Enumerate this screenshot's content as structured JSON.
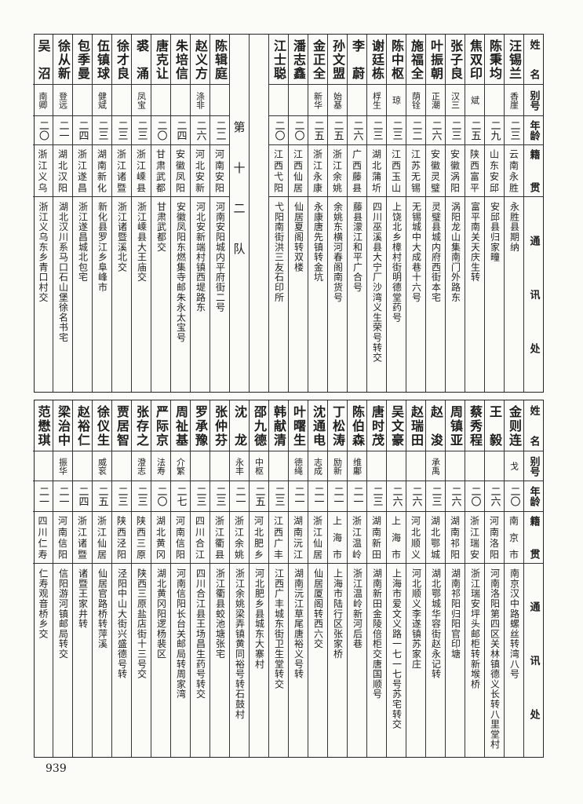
{
  "header_labels": {
    "name": "姓名",
    "alias": "别号",
    "age": "年龄",
    "origin": "籍贯",
    "address": "通讯处"
  },
  "separator_label": "第十二队",
  "top_right_group": [
    {
      "name": "汪锡兰",
      "alias": "香崖",
      "age": "二三",
      "origin": "云南永胜",
      "address": "永胜县期纳"
    },
    {
      "name": "陈秉均",
      "alias": "",
      "age": "二九",
      "origin": "山东安邱",
      "address": "安邱县归家疃"
    },
    {
      "name": "焦双印",
      "alias": "斌",
      "age": "二五",
      "origin": "陕西富平",
      "address": "富平南关天庆生转"
    },
    {
      "name": "张子良",
      "alias": "汉三",
      "age": "二三",
      "origin": "安徽涡阳",
      "address": "涡阳龙山集南门外路东"
    },
    {
      "name": "叶振朝",
      "alias": "正潮",
      "age": "二六",
      "origin": "安徽灵璧",
      "address": "灵璧县城内府西街本宅"
    },
    {
      "name": "施福全",
      "alias": "荫铨",
      "age": "二二",
      "origin": "江苏无锡",
      "address": "无锡城中大成巷十六号"
    },
    {
      "name": "陈中枢",
      "alias": "琼",
      "age": "二三",
      "origin": "江西玉山",
      "address": "上饶北乡樟村街明德堂药号"
    },
    {
      "name": "谢廷栋",
      "alias": "桴生",
      "age": "二三",
      "origin": "湖北蒲圻",
      "address": "四川巫溪县大宁厂沙湾义生荣号转交"
    },
    {
      "name": "李蔚",
      "alias": "",
      "age": "二六",
      "origin": "广西藤县",
      "address": "藤县濛江和平广合号"
    },
    {
      "name": "孙文盟",
      "alias": "始基",
      "age": "二五",
      "origin": "浙江余姚",
      "address": "余姚东横河春阁南货号"
    },
    {
      "name": "金正全",
      "alias": "新华",
      "age": "二五",
      "origin": "浙江永康",
      "address": "永康唐先镇转金坑"
    },
    {
      "name": "潘志鑫",
      "alias": "",
      "age": "二〇",
      "origin": "江西仙居",
      "address": "仙居夏阁转双楼"
    },
    {
      "name": "江士聪",
      "alias": "",
      "age": "二〇",
      "origin": "江西弋阳",
      "address": "弋阳南街洪三友石印所"
    }
  ],
  "top_left_group": [
    {
      "name": "陈辑庭",
      "alias": "",
      "age": "二二",
      "origin": "河南安阳",
      "address": "河南安阳城内平府街二号"
    },
    {
      "name": "赵义方",
      "alias": "涤非",
      "age": "二六",
      "origin": "河北安新",
      "address": "河北安新端村镇西堤路东"
    },
    {
      "name": "朱培信",
      "alias": "",
      "age": "二四",
      "origin": "安徽凤阳",
      "address": "安徽凤阳东燃集寺邮朱永太宝号"
    },
    {
      "name": "唐克让",
      "alias": "",
      "age": "二〇",
      "origin": "甘肃武都",
      "address": "甘肃武都交"
    },
    {
      "name": "裘涌",
      "alias": "凤宝",
      "age": "二三",
      "origin": "浙江嵊县",
      "address": "浙江嵊县大王庙交"
    },
    {
      "name": "徐才良",
      "alias": "",
      "age": "二三",
      "origin": "浙江诸暨",
      "address": "浙江诸暨溪北交"
    },
    {
      "name": "伍镇球",
      "alias": "健斌",
      "age": "二三",
      "origin": "湖南新化",
      "address": "新化县罗江乡阜峰市"
    },
    {
      "name": "包季曼",
      "alias": "",
      "age": "二四",
      "origin": "浙江遂昌",
      "address": "浙江遂昌城北包宅"
    },
    {
      "name": "徐从新",
      "alias": "登远",
      "age": "二一",
      "origin": "湖北汉阳",
      "address": "湖北汉川系马口石山堡徐名书宅"
    },
    {
      "name": "吴沼",
      "alias": "南卿",
      "age": "二〇",
      "origin": "浙江义乌",
      "address": "浙江义乌东乡青口村交"
    }
  ],
  "bottom_group": [
    {
      "name": "金则连",
      "alias": "戈",
      "age": "二〇",
      "origin": "南京市",
      "address": "南京汉中路螺丝转湾八号"
    },
    {
      "name": "王毅",
      "alias": "",
      "age": "二六",
      "origin": "河南洛阳",
      "address": "河南洛阳第四区关林镇德义长转八里堂村"
    },
    {
      "name": "蔡秀程",
      "alias": "",
      "age": "二〇",
      "origin": "浙江瑞安",
      "address": "浙江瑞安坪头邮柜转新堠桥"
    },
    {
      "name": "周镇亚",
      "alias": "",
      "age": "二六",
      "origin": "湖南祁阳",
      "address": "湖南祁阳归阳官印塘"
    },
    {
      "name": "赵浚",
      "alias": "承禹",
      "age": "二三",
      "origin": "湖北鄂城",
      "address": "湖北鄂城华容街赵永记转"
    },
    {
      "name": "赵瑞田",
      "alias": "",
      "age": "二六",
      "origin": "河北顺义",
      "address": "河北顺义李遂镇苏家庄"
    },
    {
      "name": "吴文豪",
      "alias": "",
      "age": "二六",
      "origin": "上海市",
      "address": "上海市爱文义路一七一七号苏宅转交"
    },
    {
      "name": "唐时茂",
      "alias": "",
      "age": "二三",
      "origin": "湖南新田",
      "address": "湖南新田金陵倍柜交唐国顺号"
    },
    {
      "name": "陈伯森",
      "alias": "维鄘",
      "age": "二一",
      "origin": "浙江温岭",
      "address": "浙江温岭新河后巷"
    },
    {
      "name": "丁松涛",
      "alias": "励新",
      "age": "二一",
      "origin": "上海市",
      "address": "上海市陆行区张家桥"
    },
    {
      "name": "沈通电",
      "alias": "志成",
      "age": "二一",
      "origin": "浙江仙居",
      "address": "仙居厦阁转西六交"
    },
    {
      "name": "叶曙生",
      "alias": "德绳",
      "age": "二一",
      "origin": "湖南沅江",
      "address": "湖南沅江草尾唐裕义号转"
    },
    {
      "name": "韩献清",
      "alias": "",
      "age": "二三",
      "origin": "江西广丰",
      "address": "江西广丰城东街卫生堂转交"
    },
    {
      "name": "邵九德",
      "alias": "中枢",
      "age": "二五",
      "origin": "河北肥乡",
      "address": "河北肥乡县城东大寨村"
    },
    {
      "name": "沈龙",
      "alias": "永丰",
      "age": "二一",
      "origin": "浙江余姚",
      "address": "浙江余姚梁弄镇黄同裕号转石鼓村"
    },
    {
      "name": "张仲芬",
      "alias": "",
      "age": "二三",
      "origin": "浙江衢县",
      "address": "浙江衢县蛟池塘张宅"
    },
    {
      "name": "罗承豫",
      "alias": "",
      "age": "二三",
      "origin": "四川合江",
      "address": "四川合江县王场昌生药号转交"
    },
    {
      "name": "周祉基",
      "alias": "介繁",
      "age": "二七",
      "origin": "河南信阳",
      "address": "河南信阳长台关邮局转周家湾"
    },
    {
      "name": "严际京",
      "alias": "法寿",
      "age": "二〇",
      "origin": "湖北黄冈",
      "address": "湖北黄冈阳逻杨裴区"
    },
    {
      "name": "张存之",
      "alias": "澄志",
      "age": "二三",
      "origin": "陕西三原",
      "address": "陕西三原盐店街十三号交"
    },
    {
      "name": "贾居智",
      "alias": "",
      "age": "二三",
      "origin": "陕西泾阳",
      "address": "泾阳中山大街兴盛德号转"
    },
    {
      "name": "徐仪生",
      "alias": "威衮",
      "age": "二五",
      "origin": "浙江仙居",
      "address": "仙居官路桥转萍溪"
    },
    {
      "name": "赵裕仁",
      "alias": "",
      "age": "二四",
      "origin": "浙江诸暨",
      "address": "诸暨王家井转"
    },
    {
      "name": "梁治中",
      "alias": "振华",
      "age": "二一",
      "origin": "河南信阳",
      "address": "信阳游河镇邮局转交"
    },
    {
      "name": "范懋琪",
      "alias": "",
      "age": "二一",
      "origin": "四川仁寿",
      "address": "仁寿观音桥乡交"
    }
  ],
  "page_number": "939"
}
